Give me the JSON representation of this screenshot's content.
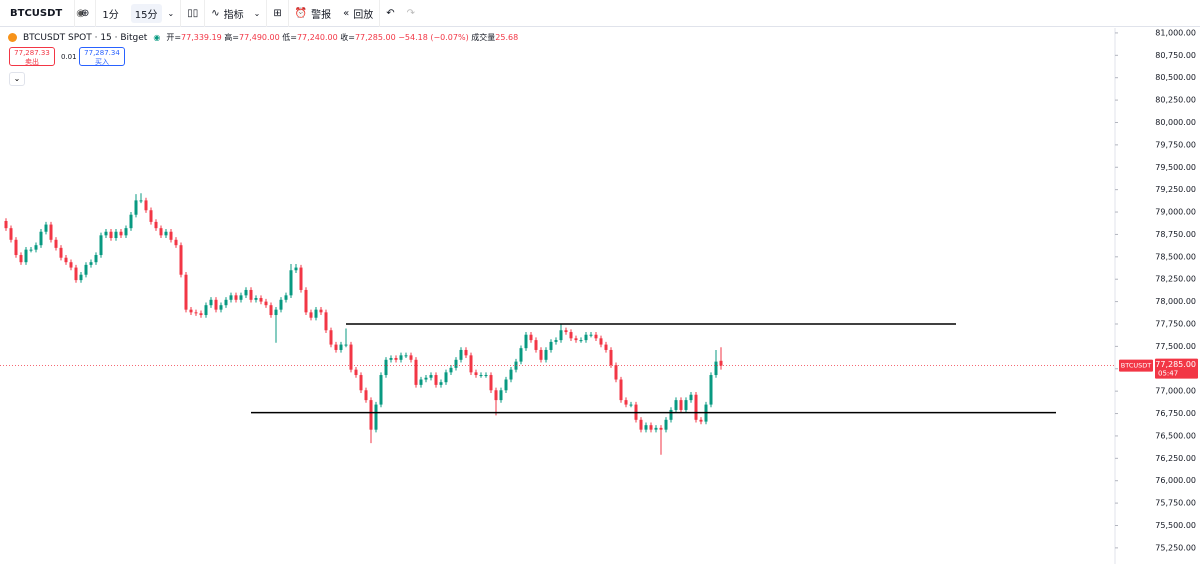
{
  "toolbar": {
    "symbol": "BTCUSDT",
    "intervals": [
      "1分",
      "15分"
    ],
    "indicators": "指标",
    "alert": "警报",
    "replay": "回放"
  },
  "legend": {
    "title": "BTCUSDT SPOT · 15 · Bitget",
    "fields": [
      {
        "label": "开=",
        "value": "77,339.19"
      },
      {
        "label": "高=",
        "value": "77,490.00"
      },
      {
        "label": "低=",
        "value": "77,240.00"
      },
      {
        "label": "收=",
        "value": "77,285.00"
      }
    ],
    "change": "−54.18 (−0.07%)",
    "volume_label": "成交量",
    "volume": "25.68"
  },
  "trade": {
    "sell_price": "77,287.33",
    "sell": "卖出",
    "spread": "0.01",
    "buy_price": "77,287.34",
    "buy": "买入"
  },
  "chart_data": {
    "type": "candlestick",
    "up_color": "#089981",
    "down_color": "#f23645",
    "open": [
      78900,
      78820,
      78690,
      78520,
      78440,
      78580,
      78580,
      78630,
      78780,
      78860,
      78690,
      78600,
      78490,
      78440,
      78380,
      78240,
      78300,
      78410,
      78440,
      78520,
      78740,
      78780,
      78710,
      78780,
      78740,
      78820,
      78970,
      79130,
      79130,
      79020,
      78890,
      78820,
      78740,
      78780,
      78690,
      78630,
      78300,
      77910,
      77880,
      77870,
      77850,
      77960,
      78020,
      77910,
      77960,
      78020,
      78070,
      78020,
      78070,
      78130,
      78020,
      78040,
      78000,
      77960,
      77850,
      77910,
      78020,
      78070,
      78350,
      78380,
      78130,
      77880,
      77820,
      77910,
      77880,
      77680,
      77520,
      77460,
      77520,
      77520,
      77240,
      77180,
      77010,
      76900,
      76570,
      76850,
      77180,
      77350,
      77370,
      77350,
      77400,
      77400,
      77350,
      77070,
      77130,
      77150,
      77180,
      77070,
      77100,
      77210,
      77260,
      77350,
      77460,
      77400,
      77210,
      77180,
      77180,
      77180,
      77010,
      76900,
      77010,
      77130,
      77240,
      77330,
      77480,
      77630,
      77570,
      77460,
      77350,
      77460,
      77550,
      77570,
      77680,
      77660,
      77590,
      77570,
      77570,
      77630,
      77630,
      77590,
      77520,
      77460,
      77290,
      77130,
      76900,
      76850,
      76850,
      76680,
      76570,
      76620,
      76570,
      76590,
      76570,
      76680,
      76790,
      76900,
      76790,
      76900,
      76960,
      76680,
      76660,
      76850,
      77180,
      77339
    ],
    "high": [
      78930,
      78850,
      78720,
      78550,
      78610,
      78610,
      78660,
      78810,
      78890,
      78890,
      78720,
      78630,
      78520,
      78470,
      78410,
      78330,
      78440,
      78470,
      78550,
      78770,
      78810,
      78810,
      78810,
      78810,
      78850,
      79000,
      79200,
      79210,
      79160,
      79050,
      78920,
      78850,
      78810,
      78810,
      78720,
      78660,
      78330,
      77940,
      77910,
      77900,
      77990,
      78050,
      78050,
      77990,
      78050,
      78100,
      78100,
      78100,
      78160,
      78160,
      78070,
      78070,
      78030,
      77990,
      77940,
      78050,
      78100,
      78420,
      78420,
      78410,
      78160,
      77910,
      77940,
      77940,
      77910,
      77710,
      77550,
      77550,
      77700,
      77550,
      77270,
      77210,
      77040,
      76930,
      76880,
      77210,
      77380,
      77400,
      77400,
      77430,
      77430,
      77430,
      77380,
      77160,
      77180,
      77210,
      77210,
      77130,
      77240,
      77290,
      77380,
      77490,
      77490,
      77430,
      77240,
      77210,
      77210,
      77210,
      77040,
      77040,
      77160,
      77270,
      77360,
      77510,
      77660,
      77660,
      77600,
      77490,
      77490,
      77580,
      77600,
      77750,
      77710,
      77690,
      77620,
      77600,
      77660,
      77660,
      77660,
      77620,
      77550,
      77490,
      77320,
      77160,
      76930,
      76880,
      76880,
      76710,
      76650,
      76650,
      76620,
      76620,
      76710,
      76820,
      76930,
      76930,
      76930,
      76990,
      76990,
      76710,
      76880,
      77210,
      77460,
      77490
    ],
    "low": [
      78790,
      78660,
      78490,
      78410,
      78410,
      78550,
      78550,
      78600,
      78750,
      78660,
      78570,
      78460,
      78410,
      78350,
      78210,
      78210,
      78270,
      78380,
      78410,
      78490,
      78710,
      78680,
      78680,
      78710,
      78710,
      78790,
      78940,
      79100,
      78990,
      78860,
      78790,
      78710,
      78710,
      78660,
      78600,
      78270,
      77880,
      77850,
      77840,
      77820,
      77820,
      77930,
      77880,
      77880,
      77930,
      77990,
      77990,
      77990,
      78040,
      77990,
      77990,
      77970,
      77930,
      77820,
      77540,
      77880,
      77990,
      78040,
      78320,
      78100,
      77850,
      77790,
      77790,
      77850,
      77650,
      77490,
      77430,
      77430,
      77490,
      77210,
      77150,
      76980,
      76870,
      76420,
      76540,
      76820,
      77150,
      77320,
      77320,
      77320,
      77370,
      77320,
      77040,
      77040,
      77100,
      77120,
      77040,
      77040,
      77070,
      77180,
      77230,
      77320,
      77370,
      77180,
      77150,
      77150,
      77150,
      76980,
      76730,
      76870,
      76980,
      77100,
      77210,
      77300,
      77450,
      77540,
      77430,
      77320,
      77320,
      77430,
      77520,
      77540,
      77630,
      77560,
      77540,
      77540,
      77540,
      77600,
      77560,
      77490,
      77430,
      77260,
      77100,
      76870,
      76820,
      76820,
      76650,
      76540,
      76540,
      76540,
      76540,
      76290,
      76540,
      76650,
      76760,
      76760,
      76760,
      76870,
      76650,
      76630,
      76630,
      76820,
      77150,
      77240
    ],
    "close": [
      78820,
      78690,
      78520,
      78440,
      78580,
      78580,
      78630,
      78780,
      78860,
      78690,
      78600,
      78490,
      78440,
      78380,
      78240,
      78300,
      78410,
      78440,
      78520,
      78740,
      78780,
      78710,
      78780,
      78740,
      78820,
      78970,
      79130,
      79130,
      79020,
      78890,
      78820,
      78740,
      78780,
      78690,
      78630,
      78300,
      77910,
      77880,
      77870,
      77850,
      77960,
      78020,
      77910,
      77960,
      78020,
      78070,
      78020,
      78070,
      78130,
      78020,
      78040,
      78000,
      77960,
      77850,
      77910,
      78020,
      78070,
      78350,
      78380,
      78130,
      77880,
      77820,
      77910,
      77880,
      77680,
      77520,
      77460,
      77520,
      77520,
      77240,
      77180,
      77010,
      76900,
      76570,
      76850,
      77180,
      77350,
      77370,
      77350,
      77400,
      77400,
      77350,
      77070,
      77130,
      77150,
      77180,
      77070,
      77100,
      77210,
      77260,
      77350,
      77460,
      77400,
      77210,
      77180,
      77180,
      77180,
      77010,
      76900,
      77010,
      77130,
      77240,
      77330,
      77480,
      77630,
      77570,
      77460,
      77350,
      77460,
      77550,
      77570,
      77680,
      77660,
      77590,
      77570,
      77570,
      77630,
      77630,
      77590,
      77520,
      77460,
      77290,
      77130,
      76900,
      76850,
      76850,
      76680,
      76570,
      76620,
      76570,
      76590,
      76570,
      76680,
      76790,
      76900,
      76790,
      76900,
      76960,
      76680,
      76660,
      76850,
      77180,
      77330,
      77285
    ],
    "ylim": [
      75070,
      81055
    ],
    "yticks": [
      {
        "value": 81000,
        "label": "81,000.00"
      },
      {
        "value": 80750,
        "label": "80,750.00"
      },
      {
        "value": 80500,
        "label": "80,500.00"
      },
      {
        "value": 80250,
        "label": "80,250.00"
      },
      {
        "value": 80000,
        "label": "80,000.00"
      },
      {
        "value": 79750,
        "label": "79,750.00"
      },
      {
        "value": 79500,
        "label": "79,500.00"
      },
      {
        "value": 79250,
        "label": "79,250.00"
      },
      {
        "value": 79000,
        "label": "79,000.00"
      },
      {
        "value": 78750,
        "label": "78,750.00"
      },
      {
        "value": 78500,
        "label": "78,500.00"
      },
      {
        "value": 78250,
        "label": "78,250.00"
      },
      {
        "value": 78000,
        "label": "78,000.00"
      },
      {
        "value": 77750,
        "label": "77,750.00"
      },
      {
        "value": 77500,
        "label": "77,500.00"
      },
      {
        "value": 77250,
        "label": "77,250.00"
      },
      {
        "value": 77000,
        "label": "77,000.00"
      },
      {
        "value": 76750,
        "label": "76,750.00"
      },
      {
        "value": 76500,
        "label": "76,500.00"
      },
      {
        "value": 76250,
        "label": "76,250.00"
      },
      {
        "value": 76000,
        "label": "76,000.00"
      },
      {
        "value": 75750,
        "label": "75,750.00"
      },
      {
        "value": 75500,
        "label": "75,500.00"
      },
      {
        "value": 75250,
        "label": "75,250.00"
      }
    ],
    "drawings": [
      {
        "price": 77750,
        "from": 68,
        "to": 190
      },
      {
        "price": 76760,
        "from": 49,
        "to": 210
      }
    ],
    "last_price": {
      "symbol": "BTCUSDT",
      "value": 77285,
      "label": "77,285.00",
      "countdown": "05:47"
    }
  }
}
